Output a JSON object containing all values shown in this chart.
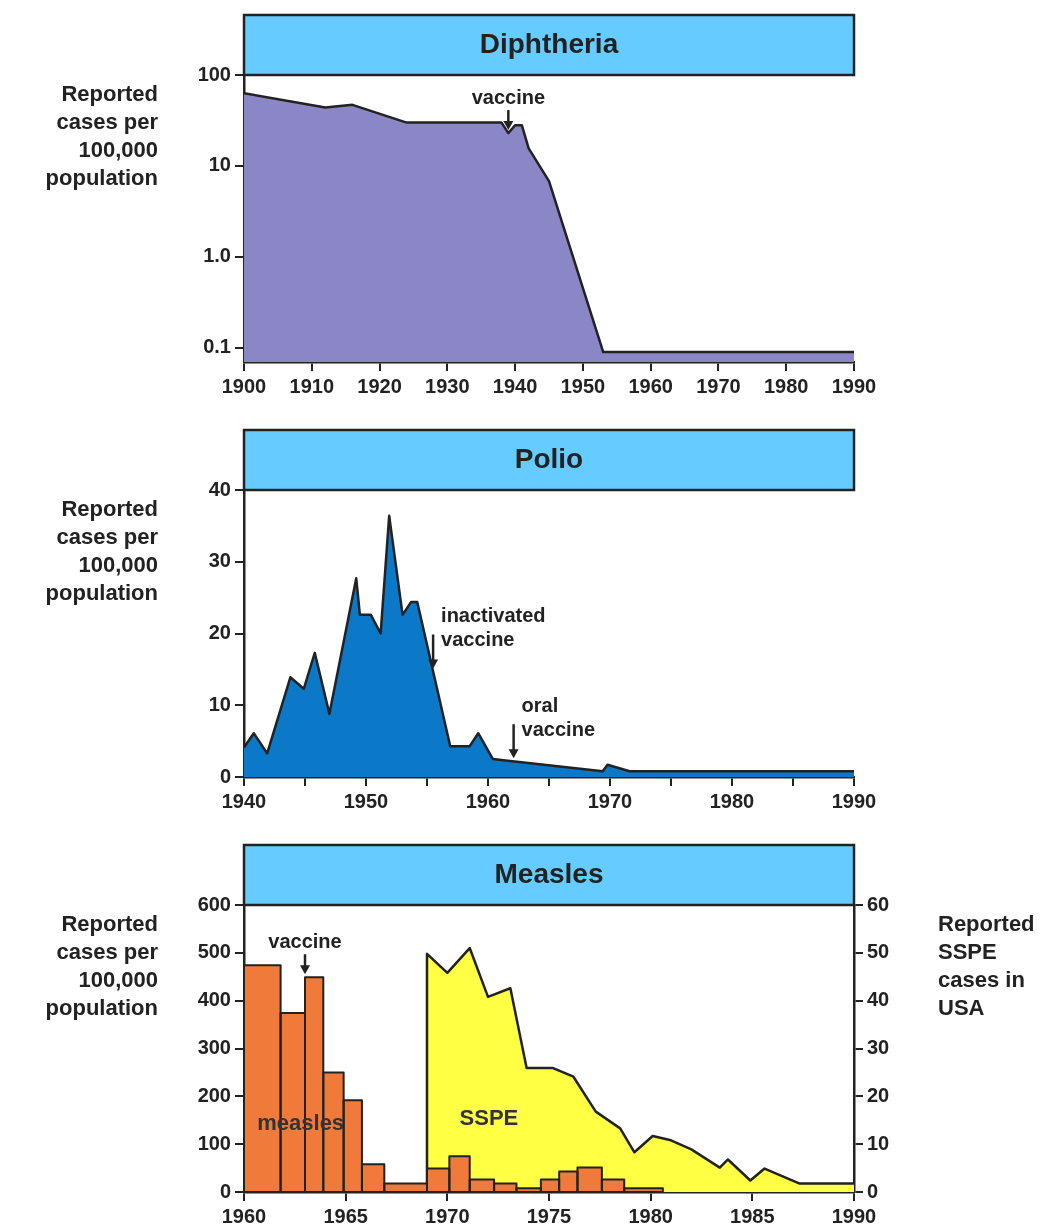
{
  "chart_data": [
    {
      "type": "area",
      "title": "Diphtheria",
      "ylabel": "Reported cases per 100,000 population",
      "log": "y",
      "xlim": [
        1900,
        1990
      ],
      "xticks": [
        1900,
        1910,
        1920,
        1930,
        1940,
        1950,
        1960,
        1970,
        1980,
        1990
      ],
      "ylim": [
        0.07,
        100
      ],
      "yticks": [
        0.1,
        {
          "value": 1,
          "label": "1.0"
        },
        10,
        100
      ],
      "series": [
        {
          "color": "#8b87c6",
          "x": [
            1900,
            1912,
            1916,
            1924,
            1938,
            1939,
            1940,
            1941,
            1942,
            1945,
            1953,
            1990
          ],
          "values": [
            63,
            44,
            47,
            30,
            30,
            23,
            28,
            28,
            15.6,
            6.8,
            0.09,
            0.09
          ]
        }
      ],
      "annotations": [
        {
          "text": "vaccine",
          "x": 1939,
          "y": 23
        }
      ]
    },
    {
      "type": "area",
      "title": "Polio",
      "ylabel": "Reported cases per 100,000 population",
      "xlim": [
        1940,
        1990
      ],
      "xticks": [
        1940,
        {
          "value": 1945,
          "label": null
        },
        1950,
        {
          "value": 1955,
          "label": null
        },
        1960,
        {
          "value": 1965,
          "label": null
        },
        1970,
        {
          "value": 1975,
          "label": null
        },
        1980,
        {
          "value": 1985,
          "label": null
        },
        1990
      ],
      "ylim": [
        0,
        40
      ],
      "yticks": [
        0,
        10,
        20,
        30,
        40
      ],
      "series": [
        {
          "color": "#0b78c8",
          "x": [
            1940,
            1940.8,
            1941.9,
            1943.8,
            1944.9,
            1945.8,
            1947,
            1949.2,
            1949.5,
            1950.4,
            1951.2,
            1951.9,
            1953,
            1953.7,
            1954.2,
            1956.9,
            1958.5,
            1959.2,
            1960.4,
            1969.4,
            1969.8,
            1971.6,
            1990
          ],
          "values": [
            4.1,
            6.1,
            3.3,
            13.9,
            12.3,
            17.3,
            8.8,
            27.7,
            22.6,
            22.6,
            20,
            36.4,
            22.6,
            24.4,
            24.4,
            4.3,
            4.3,
            6.1,
            2.5,
            0.8,
            1.7,
            0.8,
            0.8
          ]
        }
      ],
      "annotations": [
        {
          "text": "inactivated vaccine",
          "x": 1955.5,
          "y": 14.7
        },
        {
          "text": "oral vaccine",
          "x": 1962.1,
          "y": 2.2
        }
      ]
    },
    {
      "type": "area",
      "title": "Measles",
      "ylabel": "Reported cases per 100,000 population",
      "y2label": "Reported SSPE cases in USA",
      "xlim": [
        1960,
        1990
      ],
      "xticks": [
        1960,
        1965,
        1970,
        1975,
        1980,
        1985,
        1990
      ],
      "ylim": [
        0,
        600
      ],
      "yticks": [
        0,
        100,
        200,
        300,
        400,
        500,
        600
      ],
      "y2lim": [
        0,
        60
      ],
      "y2ticks": [
        0,
        10,
        20,
        30,
        40,
        50,
        60
      ],
      "series": [
        {
          "name": "SSPE",
          "axis": "y2",
          "color": "#ffff44",
          "x": [
            1969,
            1969,
            1970,
            1971.1,
            1972,
            1973.1,
            1973.9,
            1975.2,
            1976.2,
            1977.3,
            1978.5,
            1979.2,
            1980.1,
            1981,
            1982,
            1983.4,
            1983.8,
            1984.9,
            1985.6,
            1987.3,
            1990
          ],
          "values": [
            0,
            49.8,
            45.8,
            51,
            40.8,
            42.6,
            25.9,
            25.9,
            24.1,
            16.8,
            13.3,
            8.3,
            11.7,
            10.8,
            8.9,
            5.1,
            6.8,
            2.4,
            4.9,
            1.8,
            1.8
          ]
        },
        {
          "name": "measles",
          "type": "histogram",
          "color": "#f07a3a",
          "bins": [
            1960,
            1961.8,
            1963,
            1963.9,
            1964.9,
            1965.8,
            1966.9,
            1969,
            1970.1,
            1971.1,
            1972.3,
            1973.4,
            1974.6,
            1975.5,
            1976.4,
            1977.6,
            1978.7,
            1980.6
          ],
          "values": [
            474,
            374,
            449,
            250,
            192,
            58,
            18,
            49,
            75,
            26,
            18,
            8,
            26,
            43,
            51,
            26,
            8
          ]
        }
      ],
      "annotations": [
        {
          "text": "vaccine",
          "x": 1963,
          "y": 449
        }
      ]
    }
  ]
}
